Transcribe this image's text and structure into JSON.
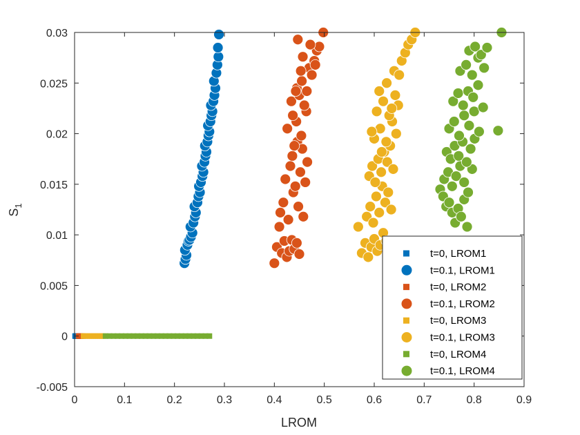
{
  "chart_data": {
    "type": "scatter",
    "title": "",
    "xlabel": "LROM",
    "ylabel": "S",
    "ylabel_sub": "1",
    "xlim": [
      0,
      0.9
    ],
    "ylim": [
      -0.005,
      0.03
    ],
    "xticks": [
      0,
      0.1,
      0.2,
      0.3,
      0.4,
      0.5,
      0.6,
      0.7,
      0.8,
      0.9
    ],
    "xtick_labels": [
      "0",
      "0.1",
      "0.2",
      "0.3",
      "0.4",
      "0.5",
      "0.6",
      "0.7",
      "0.8",
      "0.9"
    ],
    "yticks": [
      -0.005,
      0,
      0.005,
      0.01,
      0.015,
      0.02,
      0.025,
      0.03
    ],
    "ytick_labels": [
      "-0.005",
      "0",
      "0.005",
      "0.01",
      "0.015",
      "0.02",
      "0.025",
      "0.03"
    ],
    "grid": false,
    "legend_position": "bottom-right",
    "series": [
      {
        "name": "t=0, LROM1",
        "marker": "square",
        "color": "#0072BD",
        "x": [
          0.001,
          0.002,
          0.003,
          0.004,
          0.005,
          0.006
        ],
        "y": [
          0,
          0,
          0,
          0,
          0,
          0
        ]
      },
      {
        "name": "t=0.1, LROM1",
        "marker": "circle",
        "color": "#0072BD",
        "x": [
          0.22,
          0.222,
          0.224,
          0.221,
          0.226,
          0.228,
          0.23,
          0.233,
          0.236,
          0.232,
          0.238,
          0.241,
          0.243,
          0.24,
          0.246,
          0.248,
          0.251,
          0.249,
          0.253,
          0.256,
          0.258,
          0.255,
          0.26,
          0.262,
          0.264,
          0.261,
          0.266,
          0.268,
          0.27,
          0.267,
          0.272,
          0.274,
          0.276,
          0.273,
          0.278,
          0.28,
          0.282,
          0.279,
          0.284,
          0.286,
          0.288,
          0.287,
          0.289
        ],
        "y": [
          0.0072,
          0.0076,
          0.008,
          0.0085,
          0.009,
          0.0094,
          0.0095,
          0.0098,
          0.0102,
          0.0108,
          0.0112,
          0.0118,
          0.0122,
          0.0128,
          0.0132,
          0.0138,
          0.0142,
          0.0148,
          0.0152,
          0.0158,
          0.0162,
          0.0168,
          0.0172,
          0.0178,
          0.0182,
          0.0188,
          0.0192,
          0.0198,
          0.0202,
          0.0208,
          0.0212,
          0.0218,
          0.0222,
          0.0228,
          0.0232,
          0.0238,
          0.0245,
          0.0252,
          0.026,
          0.0268,
          0.0276,
          0.0285,
          0.0298
        ]
      },
      {
        "name": "t=0, LROM2",
        "marker": "square",
        "color": "#D95319",
        "x": [
          0.008,
          0.01,
          0.012,
          0.014,
          0.016
        ],
        "y": [
          0,
          0,
          0,
          0,
          0
        ]
      },
      {
        "name": "t=0.1, LROM2",
        "marker": "circle",
        "color": "#D95319",
        "x": [
          0.4,
          0.405,
          0.41,
          0.415,
          0.42,
          0.425,
          0.43,
          0.435,
          0.44,
          0.445,
          0.45,
          0.412,
          0.418,
          0.428,
          0.438,
          0.448,
          0.458,
          0.422,
          0.432,
          0.442,
          0.452,
          0.462,
          0.436,
          0.446,
          0.456,
          0.466,
          0.426,
          0.444,
          0.454,
          0.464,
          0.434,
          0.44,
          0.45,
          0.46,
          0.445,
          0.455,
          0.465,
          0.47,
          0.475,
          0.48,
          0.485,
          0.49,
          0.447,
          0.457,
          0.472,
          0.482,
          0.498,
          0.437,
          0.443,
          0.453
        ],
        "y": [
          0.0072,
          0.0088,
          0.0108,
          0.0082,
          0.0094,
          0.0078,
          0.0084,
          0.0095,
          0.0086,
          0.0092,
          0.0081,
          0.0122,
          0.0132,
          0.0115,
          0.0142,
          0.0128,
          0.0118,
          0.0155,
          0.0168,
          0.0148,
          0.0162,
          0.0152,
          0.0178,
          0.0192,
          0.0185,
          0.0172,
          0.0205,
          0.0212,
          0.0198,
          0.0222,
          0.0232,
          0.0188,
          0.0238,
          0.0228,
          0.0245,
          0.0252,
          0.0242,
          0.0265,
          0.0258,
          0.0272,
          0.0282,
          0.0286,
          0.0293,
          0.0276,
          0.0288,
          0.0268,
          0.03,
          0.0218,
          0.0242,
          0.0262
        ]
      },
      {
        "name": "t=0, LROM3",
        "marker": "square",
        "color": "#EDB120",
        "x": [
          0.018,
          0.022,
          0.026,
          0.03,
          0.034,
          0.038,
          0.042,
          0.046,
          0.05,
          0.054,
          0.058
        ],
        "y": [
          0,
          0,
          0,
          0,
          0,
          0,
          0,
          0,
          0,
          0,
          0
        ]
      },
      {
        "name": "t=0.1, LROM3",
        "marker": "circle",
        "color": "#EDB120",
        "x": [
          0.568,
          0.575,
          0.582,
          0.588,
          0.594,
          0.6,
          0.606,
          0.612,
          0.618,
          0.624,
          0.585,
          0.592,
          0.598,
          0.604,
          0.61,
          0.616,
          0.622,
          0.628,
          0.634,
          0.59,
          0.596,
          0.602,
          0.608,
          0.614,
          0.62,
          0.626,
          0.632,
          0.638,
          0.6,
          0.612,
          0.624,
          0.636,
          0.644,
          0.605,
          0.618,
          0.63,
          0.642,
          0.648,
          0.61,
          0.625,
          0.64,
          0.655,
          0.662,
          0.668,
          0.675,
          0.682,
          0.595,
          0.615,
          0.635,
          0.65
        ],
        "y": [
          0.0108,
          0.0082,
          0.0092,
          0.0078,
          0.0088,
          0.0096,
          0.0084,
          0.009,
          0.0102,
          0.0094,
          0.0118,
          0.0128,
          0.0112,
          0.0138,
          0.0122,
          0.0148,
          0.0132,
          0.0142,
          0.0125,
          0.0158,
          0.0168,
          0.0152,
          0.0175,
          0.0162,
          0.0182,
          0.0172,
          0.0188,
          0.0165,
          0.0195,
          0.0205,
          0.0192,
          0.0212,
          0.02,
          0.0222,
          0.0232,
          0.0218,
          0.0238,
          0.0228,
          0.0242,
          0.025,
          0.0262,
          0.0272,
          0.028,
          0.0288,
          0.0293,
          0.03,
          0.0202,
          0.0182,
          0.0225,
          0.0258
        ]
      },
      {
        "name": "t=0, LROM4",
        "marker": "square",
        "color": "#77AC30",
        "x": [
          0.062,
          0.07,
          0.078,
          0.086,
          0.094,
          0.102,
          0.11,
          0.118,
          0.126,
          0.134,
          0.142,
          0.15,
          0.158,
          0.166,
          0.174,
          0.182,
          0.19,
          0.198,
          0.206,
          0.214,
          0.222,
          0.23,
          0.238,
          0.246,
          0.254,
          0.262,
          0.27
        ],
        "y": [
          0,
          0,
          0,
          0,
          0,
          0,
          0,
          0,
          0,
          0,
          0,
          0,
          0,
          0,
          0,
          0,
          0,
          0,
          0,
          0,
          0,
          0,
          0,
          0,
          0,
          0,
          0
        ]
      },
      {
        "name": "t=0.1, LROM4",
        "marker": "circle",
        "color": "#77AC30",
        "x": [
          0.732,
          0.738,
          0.744,
          0.75,
          0.756,
          0.762,
          0.768,
          0.774,
          0.78,
          0.786,
          0.74,
          0.748,
          0.756,
          0.764,
          0.772,
          0.78,
          0.788,
          0.796,
          0.745,
          0.753,
          0.761,
          0.769,
          0.777,
          0.785,
          0.793,
          0.801,
          0.75,
          0.76,
          0.77,
          0.78,
          0.79,
          0.8,
          0.81,
          0.758,
          0.768,
          0.778,
          0.788,
          0.798,
          0.808,
          0.818,
          0.772,
          0.784,
          0.796,
          0.808,
          0.82,
          0.79,
          0.802,
          0.814,
          0.826,
          0.848,
          0.855
        ],
        "y": [
          0.0145,
          0.0138,
          0.0128,
          0.0132,
          0.0122,
          0.0112,
          0.0126,
          0.0118,
          0.0135,
          0.0108,
          0.0155,
          0.0162,
          0.0148,
          0.0158,
          0.0168,
          0.0152,
          0.0142,
          0.0165,
          0.0182,
          0.0175,
          0.0188,
          0.0178,
          0.0192,
          0.0172,
          0.0185,
          0.0195,
          0.0205,
          0.0212,
          0.0198,
          0.0218,
          0.0208,
          0.0222,
          0.0202,
          0.0232,
          0.024,
          0.0228,
          0.0242,
          0.0236,
          0.0248,
          0.0226,
          0.0262,
          0.0268,
          0.0258,
          0.0275,
          0.0265,
          0.0282,
          0.0286,
          0.0278,
          0.0285,
          0.0203,
          0.03
        ]
      }
    ]
  }
}
